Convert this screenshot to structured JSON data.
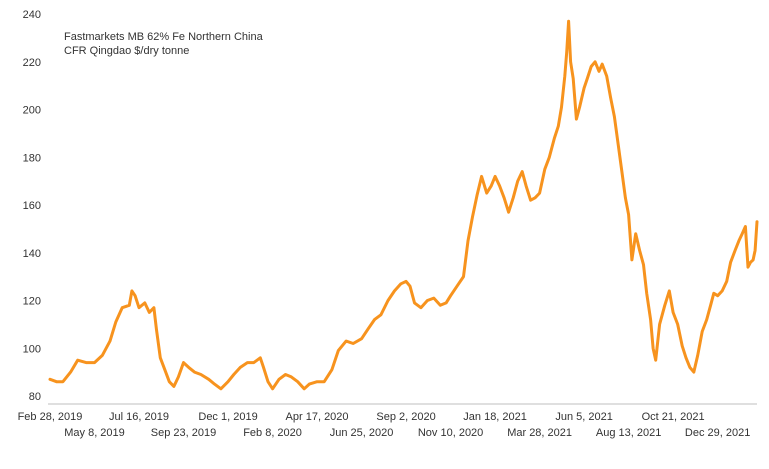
{
  "legend": {
    "line1": "Fastmarkets MB 62% Fe Northern China",
    "line2": "CFR Qingdao $/dry tonne"
  },
  "colors": {
    "series": "#F7931E",
    "axis": "#BFBFBF",
    "text": "#333333"
  },
  "chart_data": {
    "type": "line",
    "title": "",
    "xlabel": "",
    "ylabel": "",
    "ylim": [
      80,
      240
    ],
    "yticks": [
      80,
      100,
      120,
      140,
      160,
      180,
      200,
      220,
      240
    ],
    "grid": false,
    "legend_position": "top-left",
    "xticks": [
      {
        "date": "2019-02-28",
        "label": "Feb 28, 2019",
        "row": 1
      },
      {
        "date": "2019-05-08",
        "label": "May 8, 2019",
        "row": 2
      },
      {
        "date": "2019-07-16",
        "label": "Jul 16, 2019",
        "row": 1
      },
      {
        "date": "2019-09-23",
        "label": "Sep 23, 2019",
        "row": 2
      },
      {
        "date": "2019-12-01",
        "label": "Dec 1, 2019",
        "row": 1
      },
      {
        "date": "2020-02-08",
        "label": "Feb 8, 2020",
        "row": 2
      },
      {
        "date": "2020-04-17",
        "label": "Apr 17, 2020",
        "row": 1
      },
      {
        "date": "2020-06-25",
        "label": "Jun 25, 2020",
        "row": 2
      },
      {
        "date": "2020-09-02",
        "label": "Sep 2, 2020",
        "row": 1
      },
      {
        "date": "2020-11-10",
        "label": "Nov 10, 2020",
        "row": 2
      },
      {
        "date": "2021-01-18",
        "label": "Jan 18, 2021",
        "row": 1
      },
      {
        "date": "2021-03-28",
        "label": "Mar 28, 2021",
        "row": 2
      },
      {
        "date": "2021-06-05",
        "label": "Jun 5, 2021",
        "row": 1
      },
      {
        "date": "2021-08-13",
        "label": "Aug 13, 2021",
        "row": 2
      },
      {
        "date": "2021-10-21",
        "label": "Oct 21, 2021",
        "row": 1
      },
      {
        "date": "2021-12-29",
        "label": "Dec 29, 2021",
        "row": 2
      }
    ],
    "xlim": [
      "2019-02-28",
      "2022-02-28"
    ],
    "series": [
      {
        "name": "Fastmarkets MB 62% Fe Northern China CFR Qingdao $/dry tonne",
        "points": [
          [
            "2019-02-28",
            87
          ],
          [
            "2019-03-10",
            86
          ],
          [
            "2019-03-20",
            86
          ],
          [
            "2019-04-01",
            90
          ],
          [
            "2019-04-12",
            95
          ],
          [
            "2019-04-25",
            94
          ],
          [
            "2019-05-08",
            94
          ],
          [
            "2019-05-20",
            97
          ],
          [
            "2019-06-01",
            103
          ],
          [
            "2019-06-10",
            111
          ],
          [
            "2019-06-20",
            117
          ],
          [
            "2019-07-01",
            118
          ],
          [
            "2019-07-05",
            124
          ],
          [
            "2019-07-10",
            122
          ],
          [
            "2019-07-16",
            117
          ],
          [
            "2019-07-25",
            119
          ],
          [
            "2019-08-01",
            115
          ],
          [
            "2019-08-08",
            117
          ],
          [
            "2019-08-12",
            108
          ],
          [
            "2019-08-18",
            96
          ],
          [
            "2019-08-25",
            91
          ],
          [
            "2019-09-01",
            86
          ],
          [
            "2019-09-08",
            84
          ],
          [
            "2019-09-15",
            88
          ],
          [
            "2019-09-23",
            94
          ],
          [
            "2019-10-01",
            92
          ],
          [
            "2019-10-10",
            90
          ],
          [
            "2019-10-20",
            89
          ],
          [
            "2019-11-01",
            87
          ],
          [
            "2019-11-10",
            85
          ],
          [
            "2019-11-20",
            83
          ],
          [
            "2019-12-01",
            86
          ],
          [
            "2019-12-10",
            89
          ],
          [
            "2019-12-20",
            92
          ],
          [
            "2019-12-31",
            94
          ],
          [
            "2020-01-10",
            94
          ],
          [
            "2020-01-20",
            96
          ],
          [
            "2020-01-25",
            92
          ],
          [
            "2020-02-01",
            86
          ],
          [
            "2020-02-08",
            83
          ],
          [
            "2020-02-18",
            87
          ],
          [
            "2020-02-28",
            89
          ],
          [
            "2020-03-08",
            88
          ],
          [
            "2020-03-18",
            86
          ],
          [
            "2020-03-28",
            83
          ],
          [
            "2020-04-05",
            85
          ],
          [
            "2020-04-17",
            86
          ],
          [
            "2020-04-28",
            86
          ],
          [
            "2020-05-10",
            91
          ],
          [
            "2020-05-20",
            99
          ],
          [
            "2020-06-01",
            103
          ],
          [
            "2020-06-12",
            102
          ],
          [
            "2020-06-25",
            104
          ],
          [
            "2020-07-05",
            108
          ],
          [
            "2020-07-15",
            112
          ],
          [
            "2020-07-25",
            114
          ],
          [
            "2020-08-05",
            120
          ],
          [
            "2020-08-15",
            124
          ],
          [
            "2020-08-25",
            127
          ],
          [
            "2020-09-02",
            128
          ],
          [
            "2020-09-08",
            126
          ],
          [
            "2020-09-15",
            119
          ],
          [
            "2020-09-25",
            117
          ],
          [
            "2020-10-05",
            120
          ],
          [
            "2020-10-15",
            121
          ],
          [
            "2020-10-25",
            118
          ],
          [
            "2020-11-03",
            119
          ],
          [
            "2020-11-10",
            122
          ],
          [
            "2020-11-20",
            126
          ],
          [
            "2020-11-30",
            130
          ],
          [
            "2020-12-07",
            145
          ],
          [
            "2020-12-14",
            155
          ],
          [
            "2020-12-21",
            164
          ],
          [
            "2020-12-28",
            172
          ],
          [
            "2021-01-05",
            165
          ],
          [
            "2021-01-12",
            168
          ],
          [
            "2021-01-18",
            172
          ],
          [
            "2021-01-25",
            168
          ],
          [
            "2021-02-01",
            163
          ],
          [
            "2021-02-08",
            157
          ],
          [
            "2021-02-15",
            163
          ],
          [
            "2021-02-22",
            170
          ],
          [
            "2021-03-01",
            174
          ],
          [
            "2021-03-07",
            168
          ],
          [
            "2021-03-14",
            162
          ],
          [
            "2021-03-21",
            163
          ],
          [
            "2021-03-28",
            165
          ],
          [
            "2021-04-05",
            175
          ],
          [
            "2021-04-12",
            180
          ],
          [
            "2021-04-20",
            188
          ],
          [
            "2021-04-26",
            193
          ],
          [
            "2021-05-01",
            201
          ],
          [
            "2021-05-06",
            214
          ],
          [
            "2021-05-09",
            224
          ],
          [
            "2021-05-12",
            237
          ],
          [
            "2021-05-15",
            220
          ],
          [
            "2021-05-19",
            213
          ],
          [
            "2021-05-24",
            196
          ],
          [
            "2021-05-29",
            201
          ],
          [
            "2021-06-05",
            209
          ],
          [
            "2021-06-10",
            213
          ],
          [
            "2021-06-16",
            218
          ],
          [
            "2021-06-22",
            220
          ],
          [
            "2021-06-28",
            216
          ],
          [
            "2021-07-03",
            219
          ],
          [
            "2021-07-10",
            214
          ],
          [
            "2021-07-16",
            205
          ],
          [
            "2021-07-22",
            197
          ],
          [
            "2021-07-28",
            185
          ],
          [
            "2021-08-03",
            173
          ],
          [
            "2021-08-08",
            163
          ],
          [
            "2021-08-13",
            156
          ],
          [
            "2021-08-18",
            137
          ],
          [
            "2021-08-24",
            148
          ],
          [
            "2021-08-30",
            141
          ],
          [
            "2021-09-05",
            135
          ],
          [
            "2021-09-10",
            123
          ],
          [
            "2021-09-16",
            112
          ],
          [
            "2021-09-20",
            100
          ],
          [
            "2021-09-24",
            95
          ],
          [
            "2021-09-30",
            110
          ],
          [
            "2021-10-08",
            118
          ],
          [
            "2021-10-15",
            124
          ],
          [
            "2021-10-21",
            115
          ],
          [
            "2021-10-28",
            110
          ],
          [
            "2021-11-04",
            101
          ],
          [
            "2021-11-10",
            96
          ],
          [
            "2021-11-16",
            92
          ],
          [
            "2021-11-22",
            90
          ],
          [
            "2021-11-28",
            97
          ],
          [
            "2021-12-05",
            107
          ],
          [
            "2021-12-12",
            112
          ],
          [
            "2021-12-18",
            118
          ],
          [
            "2021-12-23",
            123
          ],
          [
            "2021-12-29",
            122
          ],
          [
            "2022-01-05",
            124
          ],
          [
            "2022-01-12",
            128
          ],
          [
            "2022-01-18",
            136
          ],
          [
            "2022-01-25",
            141
          ],
          [
            "2022-01-31",
            145
          ],
          [
            "2022-02-05",
            148
          ],
          [
            "2022-02-10",
            151
          ],
          [
            "2022-02-14",
            134
          ],
          [
            "2022-02-18",
            136
          ],
          [
            "2022-02-22",
            137
          ],
          [
            "2022-02-25",
            141
          ],
          [
            "2022-02-28",
            153
          ]
        ]
      }
    ]
  }
}
